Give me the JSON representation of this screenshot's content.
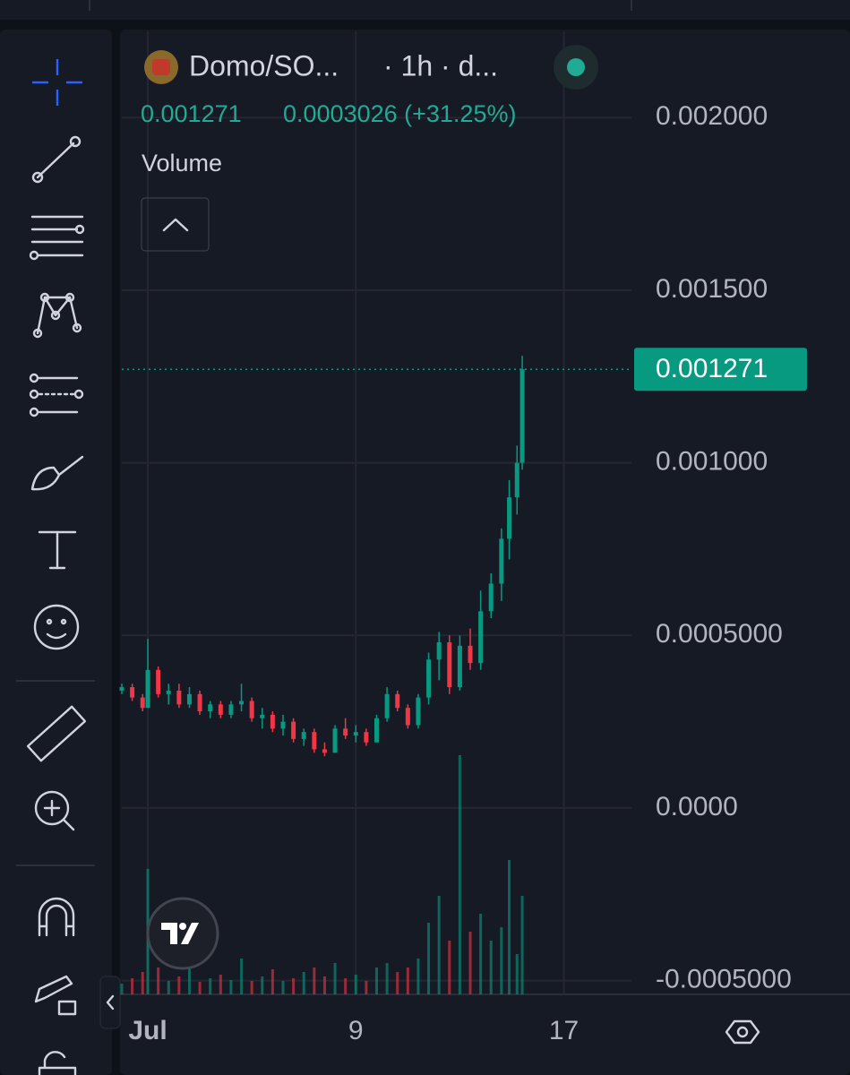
{
  "header": {
    "symbol": "Domo/SO...",
    "interval": "· 1h · d...",
    "last": "0.001271",
    "change": "0.0003026 (+31.25%)",
    "indicator": "Volume"
  },
  "chart_data": {
    "type": "candlestick",
    "x": [
      0.0,
      0.4,
      0.8,
      1.0,
      1.4,
      1.8,
      2.2,
      2.6,
      3.0,
      3.4,
      3.8,
      4.2,
      4.6,
      5.0,
      5.4,
      5.8,
      6.2,
      6.6,
      7.0,
      7.4,
      7.8,
      8.2,
      8.6,
      9.0,
      9.4,
      9.8,
      10.2,
      10.6,
      11.0,
      11.4,
      11.8,
      12.2,
      12.6,
      13.0,
      13.4,
      13.8,
      14.2,
      14.6,
      14.9,
      15.2,
      15.4
    ],
    "open": [
      0.00034,
      0.00035,
      0.00032,
      0.00029,
      0.0004,
      0.00033,
      0.00034,
      0.0003,
      0.00033,
      0.00028,
      0.0003,
      0.00027,
      0.0003,
      0.00031,
      0.00026,
      0.00027,
      0.00023,
      0.00025,
      0.0002,
      0.00022,
      0.00017,
      0.00016,
      0.00023,
      0.00021,
      0.00022,
      0.00019,
      0.00026,
      0.00033,
      0.00029,
      0.00024,
      0.00032,
      0.00043,
      0.00048,
      0.00035,
      0.00047,
      0.00042,
      0.00057,
      0.00065,
      0.00078,
      0.0009,
      0.001
    ],
    "high": [
      0.00036,
      0.00036,
      0.00033,
      0.00049,
      0.00041,
      0.00036,
      0.00036,
      0.00035,
      0.00034,
      0.00031,
      0.00031,
      0.00031,
      0.00036,
      0.00032,
      0.00029,
      0.00028,
      0.00027,
      0.00026,
      0.00023,
      0.00023,
      0.00019,
      0.00024,
      0.00026,
      0.00024,
      0.00023,
      0.00027,
      0.00035,
      0.00034,
      0.0003,
      0.00033,
      0.00045,
      0.00051,
      0.0005,
      0.0005,
      0.00052,
      0.00063,
      0.00068,
      0.00081,
      0.00095,
      0.00105,
      0.00131
    ],
    "low": [
      0.00033,
      0.00031,
      0.00028,
      0.00029,
      0.00032,
      0.0003,
      0.00029,
      0.00029,
      0.00027,
      0.00026,
      0.00026,
      0.00026,
      0.00028,
      0.00025,
      0.00023,
      0.00022,
      0.00021,
      0.00019,
      0.00018,
      0.00016,
      0.00015,
      0.00016,
      0.0002,
      0.00019,
      0.00018,
      0.00019,
      0.00025,
      0.00028,
      0.00023,
      0.00023,
      0.0003,
      0.00037,
      0.00033,
      0.00034,
      0.0004,
      0.0004,
      0.00055,
      0.0006,
      0.00072,
      0.00085,
      0.00098
    ],
    "close": [
      0.00035,
      0.00032,
      0.00029,
      0.0004,
      0.00033,
      0.00034,
      0.0003,
      0.00033,
      0.00028,
      0.0003,
      0.00027,
      0.0003,
      0.00031,
      0.00026,
      0.00027,
      0.00023,
      0.00025,
      0.0002,
      0.00022,
      0.00017,
      0.00016,
      0.00023,
      0.00021,
      0.00022,
      0.00019,
      0.00026,
      0.00033,
      0.00029,
      0.00024,
      0.00032,
      0.00043,
      0.00048,
      0.00035,
      0.00047,
      0.00042,
      0.00057,
      0.00065,
      0.00078,
      0.0009,
      0.001,
      0.001271
    ],
    "volume": [
      12,
      18,
      25,
      140,
      30,
      15,
      20,
      35,
      14,
      18,
      22,
      16,
      40,
      15,
      20,
      28,
      15,
      18,
      25,
      30,
      20,
      35,
      18,
      22,
      15,
      30,
      35,
      25,
      30,
      40,
      80,
      110,
      60,
      267,
      70,
      90,
      60,
      75,
      150,
      45,
      110
    ],
    "volume_lim": [
      0,
      280
    ],
    "up_color": "#089981",
    "down_color": "#f23645",
    "xlim": [
      0,
      19.6
    ],
    "xticks": [
      {
        "value": 1,
        "label": "Jul"
      },
      9,
      17
    ],
    "ylim": [
      -0.00054,
      0.00225
    ],
    "yticks": [
      {
        "value": 0.002,
        "label": "0.002000"
      },
      {
        "value": 0.0015,
        "label": "0.001500"
      },
      {
        "value": 0.001,
        "label": "0.001000"
      },
      {
        "value": 0.0005,
        "label": "0.0005000"
      },
      {
        "value": 0,
        "label": "0.0000"
      },
      {
        "value": -0.0005,
        "label": "-0.0005000"
      }
    ],
    "grid": true
  }
}
